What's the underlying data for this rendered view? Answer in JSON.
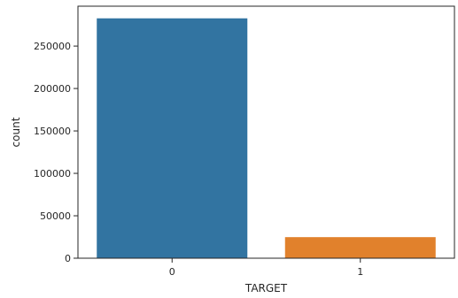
{
  "chart_data": {
    "type": "bar",
    "categories": [
      "0",
      "1"
    ],
    "values": [
      282686,
      24825
    ],
    "xlabel": "TARGET",
    "ylabel": "count",
    "ylim": [
      0,
      297000
    ],
    "yticks": [
      0,
      50000,
      100000,
      150000,
      200000,
      250000
    ],
    "colors": [
      "#3274a1",
      "#e1812c"
    ],
    "grid": false,
    "legend": "none"
  }
}
